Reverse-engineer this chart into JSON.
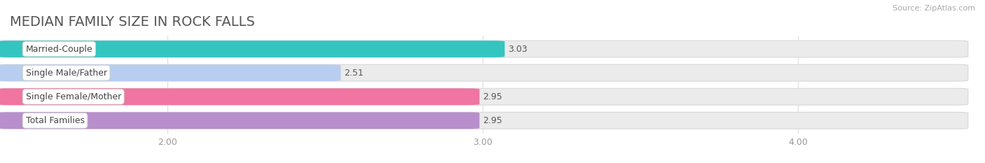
{
  "title": "MEDIAN FAMILY SIZE IN ROCK FALLS",
  "source": "Source: ZipAtlas.com",
  "categories": [
    "Married-Couple",
    "Single Male/Father",
    "Single Female/Mother",
    "Total Families"
  ],
  "values": [
    3.03,
    2.51,
    2.95,
    2.95
  ],
  "bar_colors": [
    "#34c5c0",
    "#b8cef0",
    "#f075a0",
    "#b88fcc"
  ],
  "xlim_left": 1.5,
  "xlim_right": 4.5,
  "xticks": [
    2.0,
    3.0,
    4.0
  ],
  "xtick_labels": [
    "2.00",
    "3.00",
    "4.00"
  ],
  "background_color": "#ffffff",
  "bar_bg_color": "#ebebeb",
  "title_fontsize": 14,
  "label_fontsize": 9,
  "value_fontsize": 9,
  "tick_fontsize": 9,
  "bar_height": 0.62,
  "bar_gap": 0.18
}
